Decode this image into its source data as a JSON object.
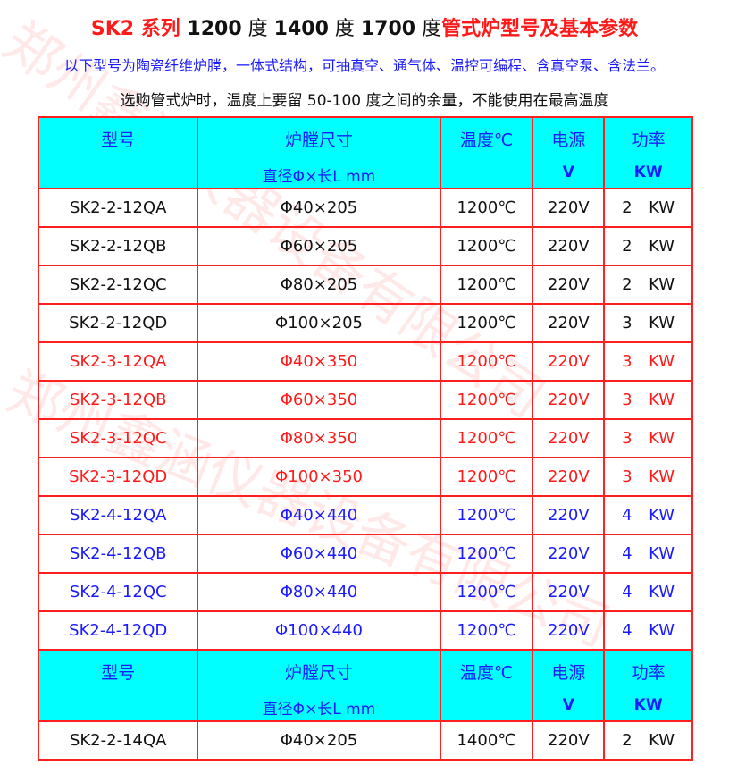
{
  "title": {
    "part1": "SK2 系列 ",
    "part2": "1200",
    "part3": " 度 ",
    "part4": "1400",
    "part5": " 度 ",
    "part6": "1700",
    "part7": " 度",
    "part8": "管式炉型号及基本参数"
  },
  "subtitle": "以下型号为陶瓷纤维炉膛，一体式结构，可抽真空、通气体、温控可编程、含真空泵、含法兰。",
  "note": "选购管式炉时，温度上要留 50-100 度之间的余量，不能使用在最高温度",
  "watermark": "郑州鑫涵仪器设备有限公司",
  "header": {
    "model": "型号",
    "chamber": "炉膛尺寸",
    "chamber_unit": "直径Φ×长L mm",
    "temp": "温度℃",
    "power_source": "电源",
    "power_source_unit": "V",
    "power": "功率",
    "power_unit": "KW"
  },
  "colors": {
    "border": "#ff2020",
    "header_bg": "#00ffff",
    "header_text": "#1a1aff",
    "red": "#ff1a1a",
    "blue": "#1a1aff"
  },
  "rows": [
    {
      "model": "SK2-2-12QA",
      "size": "Φ40×205",
      "temp": "1200℃",
      "volt": "220V",
      "kw": "2",
      "unit": "KW",
      "color": "black"
    },
    {
      "model": "SK2-2-12QB",
      "size": "Φ60×205",
      "temp": "1200℃",
      "volt": "220V",
      "kw": "2",
      "unit": "KW",
      "color": "black"
    },
    {
      "model": "SK2-2-12QC",
      "size": "Φ80×205",
      "temp": "1200℃",
      "volt": "220V",
      "kw": "2",
      "unit": "KW",
      "color": "black"
    },
    {
      "model": "SK2-2-12QD",
      "size": "Φ100×205",
      "temp": "1200℃",
      "volt": "220V",
      "kw": "3",
      "unit": "KW",
      "color": "black"
    },
    {
      "model": "SK2-3-12QA",
      "size": "Φ40×350",
      "temp": "1200℃",
      "volt": "220V",
      "kw": "3",
      "unit": "KW",
      "color": "red"
    },
    {
      "model": "SK2-3-12QB",
      "size": "Φ60×350",
      "temp": "1200℃",
      "volt": "220V",
      "kw": "3",
      "unit": "KW",
      "color": "red"
    },
    {
      "model": "SK2-3-12QC",
      "size": "Φ80×350",
      "temp": "1200℃",
      "volt": "220V",
      "kw": "3",
      "unit": "KW",
      "color": "red"
    },
    {
      "model": "SK2-3-12QD",
      "size": "Φ100×350",
      "temp": "1200℃",
      "volt": "220V",
      "kw": "3",
      "unit": "KW",
      "color": "red"
    },
    {
      "model": "SK2-4-12QA",
      "size": "Φ40×440",
      "temp": "1200℃",
      "volt": "220V",
      "kw": "4",
      "unit": "KW",
      "color": "blue"
    },
    {
      "model": "SK2-4-12QB",
      "size": "Φ60×440",
      "temp": "1200℃",
      "volt": "220V",
      "kw": "4",
      "unit": "KW",
      "color": "blue"
    },
    {
      "model": "SK2-4-12QC",
      "size": "Φ80×440",
      "temp": "1200℃",
      "volt": "220V",
      "kw": "4",
      "unit": "KW",
      "color": "blue"
    },
    {
      "model": "SK2-4-12QD",
      "size": "Φ100×440",
      "temp": "1200℃",
      "volt": "220V",
      "kw": "4",
      "unit": "KW",
      "color": "blue"
    }
  ],
  "rows2": [
    {
      "model": "SK2-2-14QA",
      "size": "Φ40×205",
      "temp": "1400℃",
      "volt": "220V",
      "kw": "2",
      "unit": "KW",
      "color": "black"
    }
  ]
}
